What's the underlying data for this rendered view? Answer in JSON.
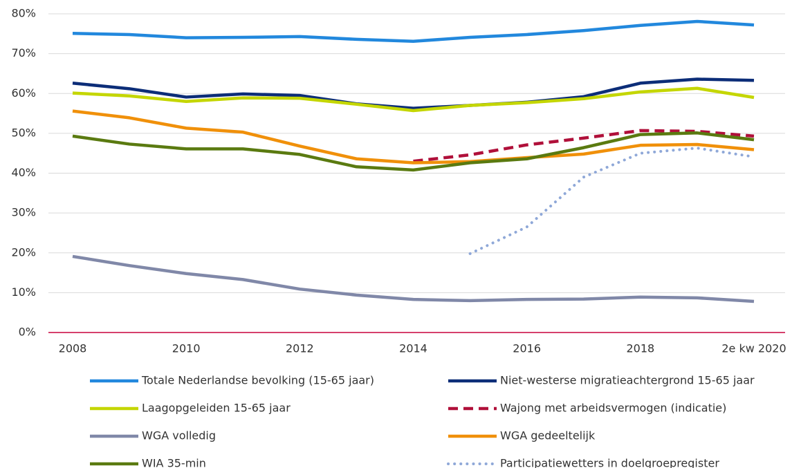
{
  "chart_data": {
    "type": "line",
    "categories": [
      "2008",
      null,
      "2010",
      null,
      "2012",
      null,
      "2014",
      null,
      "2016",
      null,
      "2018",
      null,
      "2e kw 2020"
    ],
    "ylim": [
      0,
      80
    ],
    "yticks": [
      {
        "value": 0,
        "label": "0%"
      },
      {
        "value": 10,
        "label": "10%"
      },
      {
        "value": 20,
        "label": "20%"
      },
      {
        "value": 30,
        "label": "30%"
      },
      {
        "value": 40,
        "label": "40%"
      },
      {
        "value": 50,
        "label": "50%"
      },
      {
        "value": 60,
        "label": "60%"
      },
      {
        "value": 70,
        "label": "70%"
      },
      {
        "value": 80,
        "label": "80%"
      }
    ],
    "grid": true,
    "legend": "bottom",
    "series": [
      {
        "name": "Totale Nederlandse bevolking (15-65 jaar)",
        "color": "#2288dd",
        "style": "solid",
        "values": [
          75.1,
          74.8,
          74.0,
          74.1,
          74.3,
          73.6,
          73.1,
          74.1,
          74.8,
          75.8,
          77.1,
          78.1,
          77.2
        ]
      },
      {
        "name": "Niet-westerse migratieachtergrond 15-65 jaar",
        "color": "#0c2d78",
        "style": "solid",
        "values": [
          62.6,
          61.2,
          59.1,
          59.9,
          59.5,
          57.4,
          56.3,
          57.0,
          57.8,
          59.2,
          62.6,
          63.6,
          63.3
        ]
      },
      {
        "name": "Laagopgeleiden 15-65 jaar",
        "color": "#c4d600",
        "style": "solid",
        "values": [
          60.1,
          59.4,
          58.0,
          58.9,
          58.8,
          57.3,
          55.7,
          57.0,
          57.7,
          58.7,
          60.4,
          61.3,
          59.0
        ]
      },
      {
        "name": "Wajong met arbeidsvermogen (indicatie)",
        "color": "#b0103a",
        "style": "dashed",
        "values": [
          null,
          null,
          null,
          null,
          null,
          null,
          43.0,
          44.6,
          47.1,
          48.8,
          50.7,
          50.5,
          49.3
        ]
      },
      {
        "name": "WGA volledig",
        "color": "#8088a8",
        "style": "solid",
        "values": [
          19.1,
          16.8,
          14.8,
          13.3,
          10.9,
          9.4,
          8.3,
          8.0,
          8.3,
          8.4,
          8.9,
          8.7,
          7.8
        ]
      },
      {
        "name": "WGA gedeeltelijk",
        "color": "#f0900a",
        "style": "solid",
        "values": [
          55.6,
          53.9,
          51.3,
          50.3,
          46.8,
          43.6,
          42.6,
          42.9,
          43.9,
          44.8,
          47.0,
          47.2,
          45.9
        ]
      },
      {
        "name": "WIA 35-min",
        "color": "#5a7a10",
        "style": "solid",
        "values": [
          49.3,
          47.3,
          46.1,
          46.1,
          44.7,
          41.6,
          40.8,
          42.6,
          43.6,
          46.4,
          49.7,
          50.1,
          48.4
        ]
      },
      {
        "name": "Participatiewetters in doelgroepregister",
        "color": "#8fa8d8",
        "style": "dotted",
        "values": [
          null,
          null,
          null,
          null,
          null,
          null,
          null,
          19.8,
          26.5,
          39.0,
          45.0,
          46.3,
          44.1
        ]
      }
    ]
  }
}
